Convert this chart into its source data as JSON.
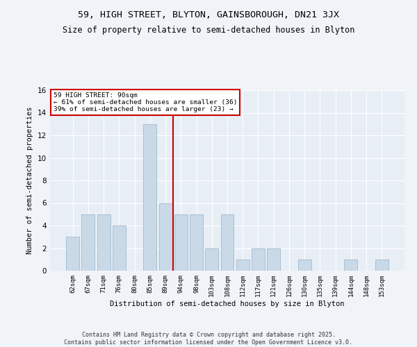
{
  "title1": "59, HIGH STREET, BLYTON, GAINSBOROUGH, DN21 3JX",
  "title2": "Size of property relative to semi-detached houses in Blyton",
  "xlabel": "Distribution of semi-detached houses by size in Blyton",
  "ylabel": "Number of semi-detached properties",
  "categories": [
    "62sqm",
    "67sqm",
    "71sqm",
    "76sqm",
    "80sqm",
    "85sqm",
    "89sqm",
    "94sqm",
    "98sqm",
    "103sqm",
    "108sqm",
    "112sqm",
    "117sqm",
    "121sqm",
    "126sqm",
    "130sqm",
    "135sqm",
    "139sqm",
    "144sqm",
    "148sqm",
    "153sqm"
  ],
  "values": [
    3,
    5,
    5,
    4,
    0,
    13,
    6,
    5,
    5,
    2,
    5,
    1,
    2,
    2,
    0,
    1,
    0,
    0,
    1,
    0,
    1
  ],
  "bar_color": "#c9d9e8",
  "bar_edgecolor": "#a0b8cc",
  "vline_color": "#cc0000",
  "annotation_title": "59 HIGH STREET: 90sqm",
  "annotation_line1": "← 61% of semi-detached houses are smaller (36)",
  "annotation_line2": "39% of semi-detached houses are larger (23) →",
  "annotation_box_color": "#ffffff",
  "annotation_box_edgecolor": "#cc0000",
  "footer": "Contains HM Land Registry data © Crown copyright and database right 2025.\nContains public sector information licensed under the Open Government Licence v3.0.",
  "ylim": [
    0,
    16
  ],
  "yticks": [
    0,
    2,
    4,
    6,
    8,
    10,
    12,
    14,
    16
  ],
  "bg_color": "#e8eef5",
  "fig_bg_color": "#f0f4f8",
  "grid_color": "#ffffff",
  "title1_fontsize": 9.5,
  "title2_fontsize": 8.5
}
